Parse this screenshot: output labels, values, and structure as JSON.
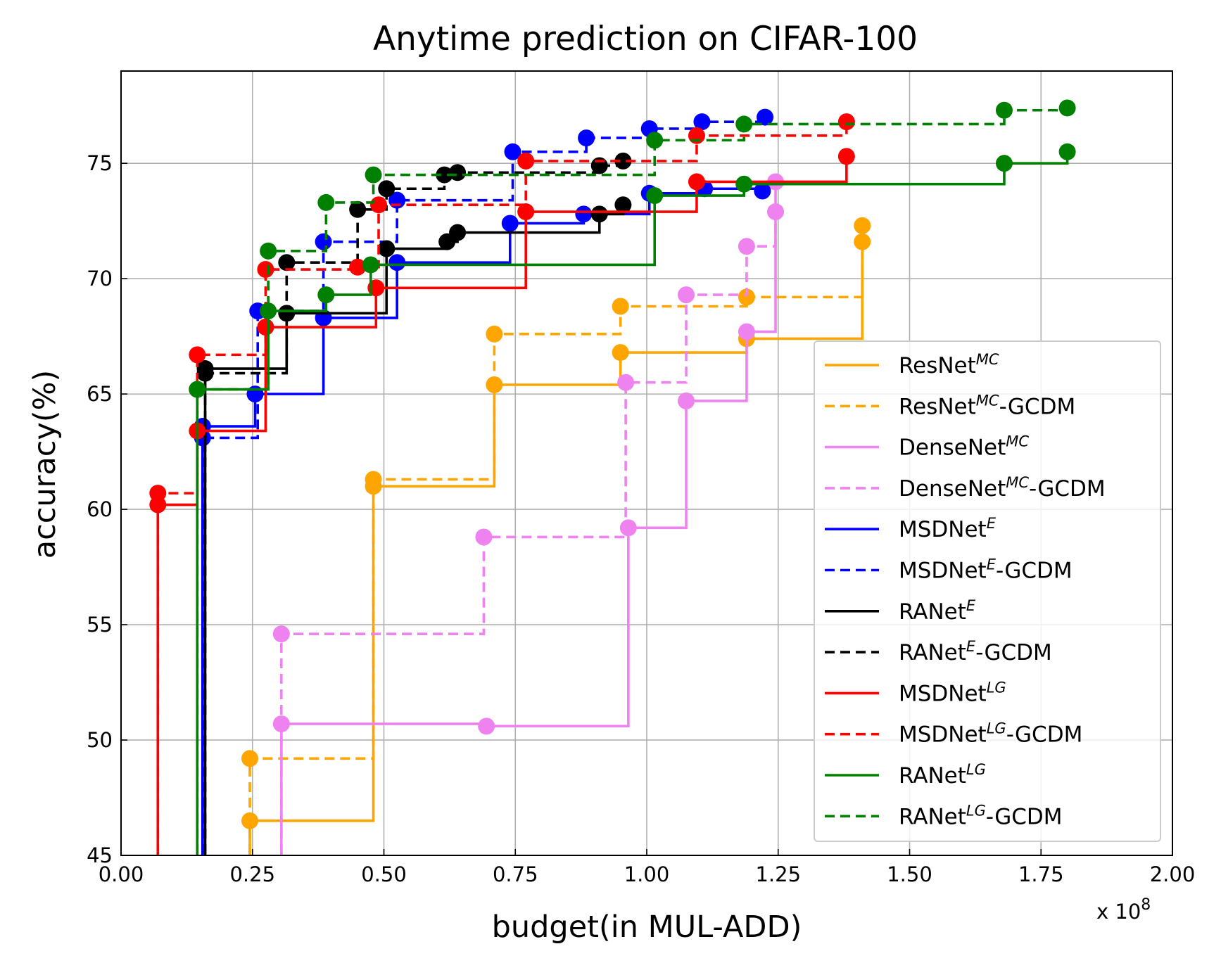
{
  "chart_data": {
    "type": "line",
    "subtype": "step",
    "title": "Anytime prediction on CIFAR-100",
    "xlabel": "budget(in MUL-ADD)",
    "ylabel": "accuracy(%)",
    "x_multiplier_label": "x 10^8",
    "xlim": [
      0,
      2.0
    ],
    "ylim": [
      45,
      79
    ],
    "x_ticks": [
      "0.00",
      "0.25",
      "0.50",
      "0.75",
      "1.00",
      "1.25",
      "1.50",
      "1.75",
      "2.00"
    ],
    "y_ticks": [
      "45",
      "50",
      "55",
      "60",
      "65",
      "70",
      "75"
    ],
    "grid": true,
    "legend_position": "lower right",
    "series": [
      {
        "name": "ResNet^MC",
        "base": "ResNet",
        "sup": "MC",
        "suffix": "",
        "color": "#ffa500",
        "dash": false,
        "x": [
          0.245,
          0.48,
          0.71,
          0.95,
          1.19,
          1.41
        ],
        "y": [
          46.5,
          61.0,
          65.4,
          66.8,
          67.4,
          71.6
        ]
      },
      {
        "name": "ResNet^MC-GCDM",
        "base": "ResNet",
        "sup": "MC",
        "suffix": "-GCDM",
        "color": "#ffa500",
        "dash": true,
        "x": [
          0.245,
          0.48,
          0.71,
          0.95,
          1.19,
          1.41
        ],
        "y": [
          49.2,
          61.3,
          67.6,
          68.8,
          69.2,
          72.3
        ]
      },
      {
        "name": "DenseNet^MC",
        "base": "DenseNet",
        "sup": "MC",
        "suffix": "",
        "color": "#ee82ee",
        "dash": false,
        "x": [
          0.305,
          0.695,
          0.965,
          1.075,
          1.19,
          1.245
        ],
        "y": [
          50.7,
          50.6,
          59.2,
          64.7,
          67.7,
          74.2
        ]
      },
      {
        "name": "DenseNet^MC-GCDM",
        "base": "DenseNet",
        "sup": "MC",
        "suffix": "-GCDM",
        "color": "#ee82ee",
        "dash": true,
        "x": [
          0.305,
          0.69,
          0.96,
          1.075,
          1.19,
          1.245
        ],
        "y": [
          54.6,
          58.8,
          65.5,
          69.3,
          71.4,
          72.9
        ]
      },
      {
        "name": "MSDNet^E",
        "base": "MSDNet",
        "sup": "E",
        "suffix": "",
        "color": "#0000ff",
        "dash": false,
        "x": [
          0.155,
          0.255,
          0.385,
          0.525,
          0.74,
          0.88,
          1.005,
          1.11,
          1.22
        ],
        "y": [
          63.6,
          65.0,
          68.3,
          70.7,
          72.4,
          72.8,
          73.7,
          73.9,
          73.8
        ]
      },
      {
        "name": "MSDNet^E-GCDM",
        "base": "MSDNet",
        "sup": "E",
        "suffix": "-GCDM",
        "color": "#0000ff",
        "dash": true,
        "x": [
          0.155,
          0.26,
          0.385,
          0.525,
          0.745,
          0.885,
          1.005,
          1.105,
          1.225
        ],
        "y": [
          63.1,
          68.6,
          71.6,
          73.4,
          75.5,
          76.1,
          76.5,
          76.8,
          77.0
        ]
      },
      {
        "name": "RANet^E",
        "base": "RANet",
        "sup": "E",
        "suffix": "",
        "color": "#000000",
        "dash": false,
        "x": [
          0.16,
          0.315,
          0.505,
          0.62,
          0.64,
          0.91,
          0.955
        ],
        "y": [
          66.1,
          68.5,
          71.3,
          71.6,
          72.0,
          72.8,
          73.2
        ]
      },
      {
        "name": "RANet^E-GCDM",
        "base": "RANet",
        "sup": "E",
        "suffix": "-GCDM",
        "color": "#000000",
        "dash": true,
        "x": [
          0.16,
          0.315,
          0.45,
          0.505,
          0.615,
          0.64,
          0.91,
          0.955
        ],
        "y": [
          65.9,
          70.7,
          73.0,
          73.9,
          74.5,
          74.6,
          74.9,
          75.1
        ]
      },
      {
        "name": "MSDNet^LG",
        "base": "MSDNet",
        "sup": "LG",
        "suffix": "",
        "color": "#ff0000",
        "dash": false,
        "x": [
          0.07,
          0.145,
          0.275,
          0.485,
          0.77,
          1.095,
          1.38
        ],
        "y": [
          60.2,
          63.4,
          67.9,
          69.6,
          72.9,
          74.2,
          75.3
        ]
      },
      {
        "name": "MSDNet^LG-GCDM",
        "base": "MSDNet",
        "sup": "LG",
        "suffix": "-GCDM",
        "color": "#ff0000",
        "dash": true,
        "x": [
          0.07,
          0.145,
          0.275,
          0.45,
          0.49,
          0.77,
          1.095,
          1.38
        ],
        "y": [
          60.7,
          66.7,
          70.4,
          70.5,
          73.2,
          75.1,
          76.2,
          76.8
        ]
      },
      {
        "name": "RANet^LG",
        "base": "RANet",
        "sup": "LG",
        "suffix": "",
        "color": "#008000",
        "dash": false,
        "x": [
          0.145,
          0.28,
          0.39,
          0.475,
          1.015,
          1.185,
          1.68,
          1.8
        ],
        "y": [
          65.2,
          68.6,
          69.3,
          70.6,
          73.6,
          74.1,
          75.0,
          75.5
        ]
      },
      {
        "name": "RANet^LG-GCDM",
        "base": "RANet",
        "sup": "LG",
        "suffix": "-GCDM",
        "color": "#008000",
        "dash": true,
        "x": [
          0.145,
          0.28,
          0.39,
          0.48,
          1.015,
          1.185,
          1.68,
          1.8
        ],
        "y": [
          65.2,
          71.2,
          73.3,
          74.5,
          76.0,
          76.7,
          77.3,
          77.4
        ]
      }
    ]
  }
}
